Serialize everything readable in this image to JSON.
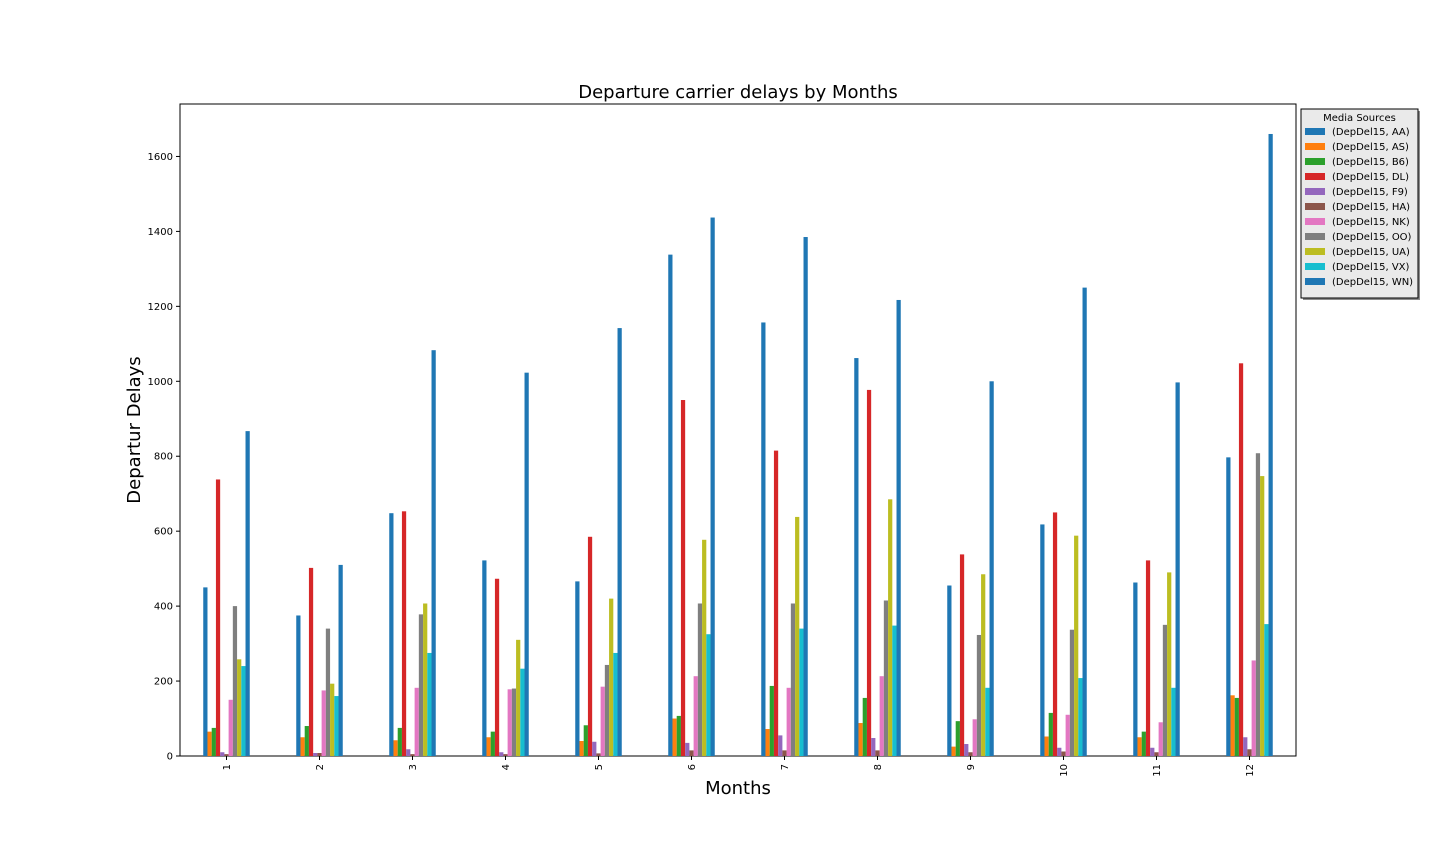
{
  "chart_data": {
    "type": "bar",
    "title": "Departure carrier delays by Months",
    "xlabel": "Months",
    "ylabel": "Departur Delays",
    "categories": [
      "1",
      "2",
      "3",
      "4",
      "5",
      "6",
      "7",
      "8",
      "9",
      "10",
      "11",
      "12"
    ],
    "ylim": [
      0,
      1740
    ],
    "yticks": [
      "0",
      "200",
      "400",
      "600",
      "800",
      "1000",
      "1200",
      "1400",
      "1600"
    ],
    "legend": {
      "title": "Media Sources",
      "placement": "outside-top-right"
    },
    "series": [
      {
        "name": "(DepDel15, AA)",
        "color": "#1f77b4",
        "values": [
          450,
          375,
          648,
          522,
          466,
          1338,
          1157,
          1062,
          455,
          618,
          463,
          797
        ]
      },
      {
        "name": "(DepDel15, AS)",
        "color": "#ff7f0e",
        "values": [
          65,
          50,
          42,
          50,
          40,
          100,
          72,
          88,
          25,
          52,
          50,
          162
        ]
      },
      {
        "name": "(DepDel15, B6)",
        "color": "#2ca02c",
        "values": [
          75,
          80,
          75,
          65,
          82,
          107,
          187,
          155,
          93,
          115,
          65,
          155
        ]
      },
      {
        "name": "(DepDel15, DL)",
        "color": "#d62728",
        "values": [
          738,
          502,
          653,
          473,
          585,
          950,
          815,
          977,
          538,
          650,
          522,
          1048
        ]
      },
      {
        "name": "(DepDel15, F9)",
        "color": "#9467bd",
        "values": [
          10,
          8,
          18,
          10,
          38,
          35,
          55,
          48,
          32,
          22,
          22,
          50
        ]
      },
      {
        "name": "(DepDel15, HA)",
        "color": "#8c564b",
        "values": [
          5,
          8,
          5,
          5,
          7,
          15,
          15,
          15,
          10,
          12,
          10,
          18
        ]
      },
      {
        "name": "(DepDel15, NK)",
        "color": "#e377c2",
        "values": [
          150,
          175,
          182,
          178,
          185,
          213,
          182,
          213,
          98,
          110,
          90,
          255
        ]
      },
      {
        "name": "(DepDel15, OO)",
        "color": "#7f7f7f",
        "values": [
          400,
          340,
          378,
          180,
          243,
          407,
          407,
          415,
          323,
          337,
          350,
          808
        ]
      },
      {
        "name": "(DepDel15, UA)",
        "color": "#bcbd22",
        "values": [
          258,
          193,
          407,
          310,
          420,
          577,
          638,
          685,
          485,
          588,
          490,
          747
        ]
      },
      {
        "name": "(DepDel15, VX)",
        "color": "#17becf",
        "values": [
          240,
          160,
          275,
          233,
          275,
          325,
          340,
          348,
          182,
          208,
          182,
          352
        ]
      },
      {
        "name": "(DepDel15, WN)",
        "color": "#1f77b4",
        "values": [
          867,
          510,
          1083,
          1023,
          1142,
          1437,
          1385,
          1217,
          1000,
          1250,
          997,
          1660
        ]
      }
    ]
  }
}
